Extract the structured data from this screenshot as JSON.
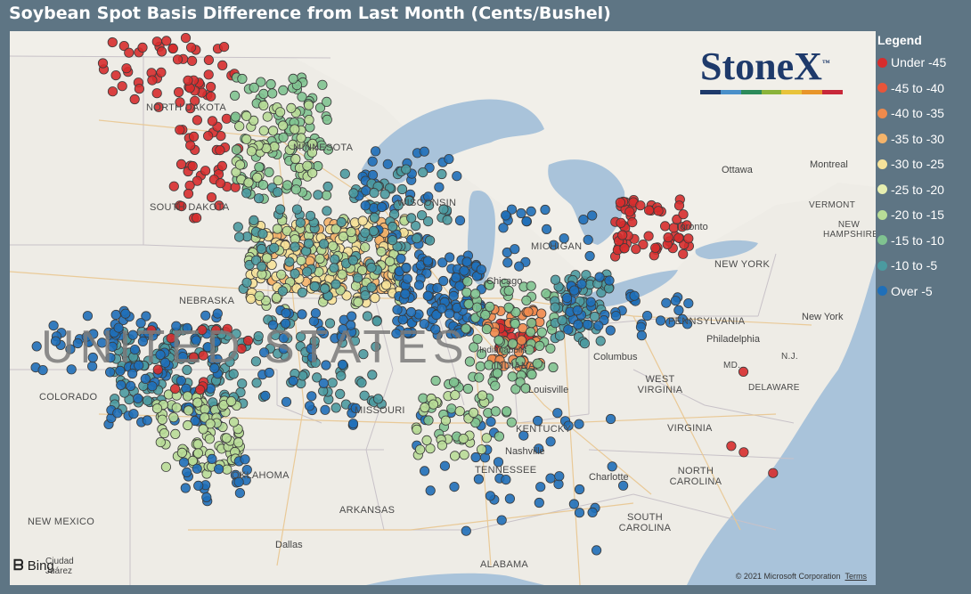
{
  "title": "Soybean Spot Basis Difference from Last Month (Cents/Bushel)",
  "legend": {
    "title": "Legend",
    "items": [
      {
        "label": "Under -45",
        "color": "#d62d2d"
      },
      {
        "label": "-45 to -40",
        "color": "#e8553a"
      },
      {
        "label": "-40 to -35",
        "color": "#ef8a4c"
      },
      {
        "label": "-35 to -30",
        "color": "#f5b46a"
      },
      {
        "label": "-30 to -25",
        "color": "#f6e29a"
      },
      {
        "label": "-25 to -20",
        "color": "#e6eeb0"
      },
      {
        "label": "-20 to -15",
        "color": "#b8dc97"
      },
      {
        "label": "-15 to -10",
        "color": "#80c390"
      },
      {
        "label": "-10 to -5",
        "color": "#4b9aa0"
      },
      {
        "label": "Over -5",
        "color": "#1f6fb8"
      }
    ]
  },
  "logo": {
    "text": "StoneX",
    "tm": "™",
    "bar_colors": [
      "#1e3a6b",
      "#4a8fc9",
      "#2c8a5a",
      "#8ab33a",
      "#e8c33a",
      "#e8952a",
      "#c8283a"
    ]
  },
  "attribution": {
    "provider": "Bing",
    "copyright": "© 2021 Microsoft Corporation",
    "terms": "Terms"
  },
  "map_labels": {
    "country": "UNITED STATES",
    "states": [
      {
        "id": "nd",
        "text": "NORTH DAKOTA"
      },
      {
        "id": "mn",
        "text": "MINNESOTA"
      },
      {
        "id": "sd",
        "text": "SOUTH DAKOTA"
      },
      {
        "id": "wi",
        "text": "WISCONSIN"
      },
      {
        "id": "mi",
        "text": "MICHIGAN"
      },
      {
        "id": "ne",
        "text": "NEBRASKA"
      },
      {
        "id": "co",
        "text": "COLORADO"
      },
      {
        "id": "mo",
        "text": "MISSOURI"
      },
      {
        "id": "in",
        "text": "INDIANA"
      },
      {
        "id": "ok",
        "text": "OKLAHOMA"
      },
      {
        "id": "ky",
        "text": "KENTUCKY"
      },
      {
        "id": "tn",
        "text": "TENNESSEE"
      },
      {
        "id": "ar",
        "text": "ARKANSAS"
      },
      {
        "id": "nm",
        "text": "NEW MEXICO"
      },
      {
        "id": "al",
        "text": "ALABAMA"
      },
      {
        "id": "ny",
        "text": "NEW YORK"
      },
      {
        "id": "pa",
        "text": "PENNSYLVANIA"
      },
      {
        "id": "wv",
        "text": "WEST VIRGINIA"
      },
      {
        "id": "va",
        "text": "VIRGINIA"
      },
      {
        "id": "nc",
        "text": "NORTH CAROLINA"
      },
      {
        "id": "sc",
        "text": "SOUTH CAROLINA"
      },
      {
        "id": "vt",
        "text": "VERMONT"
      },
      {
        "id": "nh",
        "text": "NEW HAMPSHIRE"
      },
      {
        "id": "de",
        "text": "DELAWARE"
      },
      {
        "id": "md",
        "text": "MD."
      },
      {
        "id": "nj",
        "text": "N.J."
      }
    ],
    "cities": [
      {
        "id": "chicago",
        "text": "Chicago"
      },
      {
        "id": "toronto",
        "text": "Toronto"
      },
      {
        "id": "ottawa",
        "text": "Ottawa"
      },
      {
        "id": "montreal",
        "text": "Montreal"
      },
      {
        "id": "newyork",
        "text": "New York"
      },
      {
        "id": "philadelphia",
        "text": "Philadelphia"
      },
      {
        "id": "columbus",
        "text": "Columbus"
      },
      {
        "id": "louisville",
        "text": "Louisville"
      },
      {
        "id": "nashville",
        "text": "Nashville"
      },
      {
        "id": "charlotte",
        "text": "Charlotte"
      },
      {
        "id": "dallas",
        "text": "Dallas"
      },
      {
        "id": "indianapolis",
        "text": "Indianapolis"
      },
      {
        "id": "juarez",
        "text": "Ciudad Juárez"
      }
    ]
  },
  "clusters": [
    {
      "id": "nd-red",
      "tier": 0,
      "lon_range": [
        -101.5,
        -96.5
      ],
      "lat_range": [
        46.8,
        49.0
      ],
      "count": 55
    },
    {
      "id": "sd-red",
      "tier": 0,
      "lon_range": [
        -98.8,
        -96.3
      ],
      "lat_range": [
        43.4,
        46.5
      ],
      "count": 40
    },
    {
      "id": "mn-mixed",
      "tier": 7,
      "lon_range": [
        -96.6,
        -93.0
      ],
      "lat_range": [
        44.0,
        47.8
      ],
      "count": 90
    },
    {
      "id": "mn-green",
      "tier": 6,
      "lon_range": [
        -96.5,
        -93.5
      ],
      "lat_range": [
        44.5,
        47.0
      ],
      "count": 50
    },
    {
      "id": "ia-orange",
      "tier": 3,
      "lon_range": [
        -95.5,
        -90.5
      ],
      "lat_range": [
        41.2,
        43.3
      ],
      "count": 120
    },
    {
      "id": "ia-yellow",
      "tier": 4,
      "lon_range": [
        -96.0,
        -90.0
      ],
      "lat_range": [
        40.8,
        43.5
      ],
      "count": 110
    },
    {
      "id": "ia-lightgreen",
      "tier": 6,
      "lon_range": [
        -96.0,
        -90.0
      ],
      "lat_range": [
        40.6,
        43.5
      ],
      "count": 80
    },
    {
      "id": "ia-teal",
      "tier": 8,
      "lon_range": [
        -96.5,
        -91.0
      ],
      "lat_range": [
        41.0,
        44.5
      ],
      "count": 70
    },
    {
      "id": "il-blue",
      "tier": 9,
      "lon_range": [
        -90.5,
        -87.3
      ],
      "lat_range": [
        39.8,
        42.3
      ],
      "count": 130
    },
    {
      "id": "in-red",
      "tier": 0,
      "lon_range": [
        -86.8,
        -85.4
      ],
      "lat_range": [
        39.4,
        40.3
      ],
      "count": 30
    },
    {
      "id": "in-orange",
      "tier": 2,
      "lon_range": [
        -87.2,
        -85.0
      ],
      "lat_range": [
        38.8,
        40.6
      ],
      "count": 40
    },
    {
      "id": "in-green",
      "tier": 7,
      "lon_range": [
        -88.0,
        -84.5
      ],
      "lat_range": [
        38.5,
        41.5
      ],
      "count": 70
    },
    {
      "id": "oh-teal",
      "tier": 8,
      "lon_range": [
        -84.6,
        -82.5
      ],
      "lat_range": [
        39.5,
        41.8
      ],
      "count": 60
    },
    {
      "id": "oh-blue",
      "tier": 9,
      "lon_range": [
        -84.2,
        -81.3
      ],
      "lat_range": [
        39.6,
        41.6
      ],
      "count": 35
    },
    {
      "id": "ks-teal",
      "tier": 8,
      "lon_range": [
        -101.0,
        -96.0
      ],
      "lat_range": [
        37.5,
        40.0
      ],
      "count": 130
    },
    {
      "id": "ks-blue",
      "tier": 9,
      "lon_range": [
        -101.5,
        -97.0
      ],
      "lat_range": [
        37.0,
        40.5
      ],
      "count": 70
    },
    {
      "id": "ok-lightgreen",
      "tier": 6,
      "lon_range": [
        -99.5,
        -96.3
      ],
      "lat_range": [
        35.5,
        38.0
      ],
      "count": 90
    },
    {
      "id": "ok-blue",
      "tier": 9,
      "lon_range": [
        -98.5,
        -96.0
      ],
      "lat_range": [
        34.5,
        36.0
      ],
      "count": 20
    },
    {
      "id": "mo-teal",
      "tier": 8,
      "lon_range": [
        -95.8,
        -91.0
      ],
      "lat_range": [
        37.5,
        40.5
      ],
      "count": 60
    },
    {
      "id": "mo-blue",
      "tier": 9,
      "lon_range": [
        -95.5,
        -92.0
      ],
      "lat_range": [
        37.0,
        40.6
      ],
      "count": 40
    },
    {
      "id": "ne-blue",
      "tier": 9,
      "lon_range": [
        -104.0,
        -99.0
      ],
      "lat_range": [
        38.6,
        40.6
      ],
      "count": 40
    },
    {
      "id": "wi-blue",
      "tier": 9,
      "lon_range": [
        -92.0,
        -88.0
      ],
      "lat_range": [
        42.6,
        45.5
      ],
      "count": 40
    },
    {
      "id": "wi-teal",
      "tier": 8,
      "lon_range": [
        -92.5,
        -88.5
      ],
      "lat_range": [
        42.5,
        45.0
      ],
      "count": 40
    },
    {
      "id": "mi-blue",
      "tier": 9,
      "lon_range": [
        -86.5,
        -83.0
      ],
      "lat_range": [
        41.8,
        43.8
      ],
      "count": 22
    },
    {
      "id": "on-red",
      "tier": 0,
      "lon_range": [
        -82.5,
        -79.5
      ],
      "lat_range": [
        42.2,
        44.0
      ],
      "count": 60
    },
    {
      "id": "tn-blue",
      "tier": 9,
      "lon_range": [
        -90.0,
        -82.0
      ],
      "lat_range": [
        34.6,
        37.5
      ],
      "count": 35
    },
    {
      "id": "ky-green",
      "tier": 7,
      "lon_range": [
        -89.5,
        -85.5
      ],
      "lat_range": [
        36.5,
        38.5
      ],
      "count": 35
    },
    {
      "id": "ky-lightgreen",
      "tier": 6,
      "lon_range": [
        -90.0,
        -87.0
      ],
      "lat_range": [
        36.0,
        38.0
      ],
      "count": 30
    },
    {
      "id": "pa-blue",
      "tier": 9,
      "lon_range": [
        -81.5,
        -79.5
      ],
      "lat_range": [
        40.0,
        41.2
      ],
      "count": 10
    },
    {
      "id": "ks-red",
      "tier": 0,
      "lon_range": [
        -100.0,
        -96.0
      ],
      "lat_range": [
        38.0,
        40.0
      ],
      "count": 14
    },
    {
      "id": "east-misc",
      "tier": 0,
      "lon_range": [
        -78.0,
        -74.5
      ],
      "lat_range": [
        35.0,
        40.0
      ],
      "count": 4
    },
    {
      "id": "se-misc",
      "tier": 9,
      "lon_range": [
        -88.0,
        -83.0
      ],
      "lat_range": [
        33.0,
        35.5
      ],
      "count": 10
    }
  ]
}
